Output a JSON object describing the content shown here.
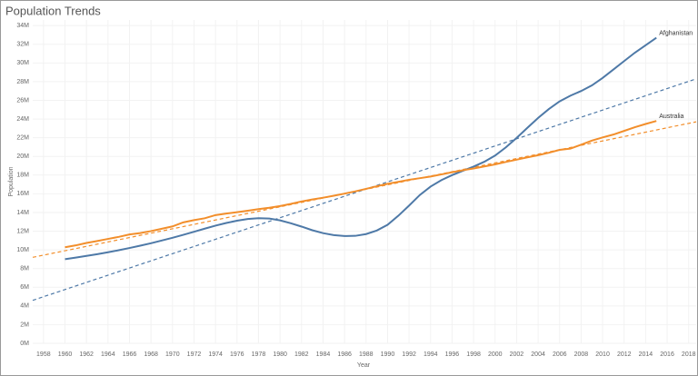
{
  "chart_data": {
    "type": "line",
    "title": "Population Trends",
    "x_label": "Year",
    "y_label": "Population",
    "x": [
      1960,
      1961,
      1962,
      1963,
      1964,
      1965,
      1966,
      1967,
      1968,
      1969,
      1970,
      1971,
      1972,
      1973,
      1974,
      1975,
      1976,
      1977,
      1978,
      1979,
      1980,
      1981,
      1982,
      1983,
      1984,
      1985,
      1986,
      1987,
      1988,
      1989,
      1990,
      1991,
      1992,
      1993,
      1994,
      1995,
      1996,
      1997,
      1998,
      1999,
      2000,
      2001,
      2002,
      2003,
      2004,
      2005,
      2006,
      2007,
      2008,
      2009,
      2010,
      2011,
      2012,
      2013,
      2014,
      2015
    ],
    "series": [
      {
        "name": "Afghanistan",
        "color": "#4e79a7",
        "values": [
          9.0,
          9.17,
          9.35,
          9.54,
          9.74,
          9.96,
          10.2,
          10.45,
          10.71,
          11.0,
          11.29,
          11.61,
          11.94,
          12.27,
          12.59,
          12.88,
          13.12,
          13.3,
          13.39,
          13.35,
          13.16,
          12.85,
          12.49,
          12.1,
          11.79,
          11.58,
          11.48,
          11.5,
          11.69,
          12.07,
          12.68,
          13.65,
          14.74,
          15.87,
          16.77,
          17.46,
          18.0,
          18.46,
          18.91,
          19.43,
          20.09,
          20.97,
          21.98,
          23.06,
          24.12,
          25.07,
          25.89,
          26.5,
          27.0,
          27.6,
          28.4,
          29.3,
          30.2,
          31.1,
          31.9,
          32.7
        ],
        "trend": {
          "x": [
            1957,
            2018.7
          ],
          "values": [
            4.6,
            28.3
          ]
        }
      },
      {
        "name": "Australia",
        "color": "#f28e2b",
        "values": [
          10.28,
          10.48,
          10.74,
          10.95,
          11.17,
          11.39,
          11.65,
          11.8,
          12.01,
          12.26,
          12.51,
          12.94,
          13.18,
          13.38,
          13.72,
          13.89,
          14.03,
          14.19,
          14.36,
          14.51,
          14.69,
          14.92,
          15.18,
          15.39,
          15.58,
          15.79,
          16.02,
          16.26,
          16.53,
          16.81,
          17.07,
          17.28,
          17.5,
          17.67,
          17.85,
          18.07,
          18.31,
          18.52,
          18.71,
          18.93,
          19.15,
          19.41,
          19.65,
          19.9,
          20.13,
          20.39,
          20.7,
          20.83,
          21.25,
          21.69,
          22.03,
          22.34,
          22.73,
          23.13,
          23.47,
          23.79
        ],
        "trend": {
          "x": [
            1957,
            2018.7
          ],
          "values": [
            9.2,
            23.7
          ]
        }
      }
    ],
    "xlim": [
      1957,
      2018.7
    ],
    "xticks": [
      1958,
      1960,
      1962,
      1964,
      1966,
      1968,
      1970,
      1972,
      1974,
      1976,
      1978,
      1980,
      1982,
      1984,
      1986,
      1988,
      1990,
      1992,
      1994,
      1996,
      1998,
      2000,
      2002,
      2004,
      2006,
      2008,
      2010,
      2012,
      2014,
      2016,
      2018
    ],
    "ylim": [
      0,
      34.6
    ],
    "yticks": [
      {
        "value": 0,
        "label": "0M"
      },
      {
        "value": 2,
        "label": "2M"
      },
      {
        "value": 4,
        "label": "4M"
      },
      {
        "value": 6,
        "label": "6M"
      },
      {
        "value": 8,
        "label": "8M"
      },
      {
        "value": 10,
        "label": "10M"
      },
      {
        "value": 12,
        "label": "12M"
      },
      {
        "value": 14,
        "label": "14M"
      },
      {
        "value": 16,
        "label": "16M"
      },
      {
        "value": 18,
        "label": "18M"
      },
      {
        "value": 20,
        "label": "20M"
      },
      {
        "value": 22,
        "label": "22M"
      },
      {
        "value": 24,
        "label": "24M"
      },
      {
        "value": 26,
        "label": "26M"
      },
      {
        "value": 28,
        "label": "28M"
      },
      {
        "value": 30,
        "label": "30M"
      },
      {
        "value": 32,
        "label": "32M"
      },
      {
        "value": 34,
        "label": "34M"
      }
    ],
    "grid": true
  }
}
